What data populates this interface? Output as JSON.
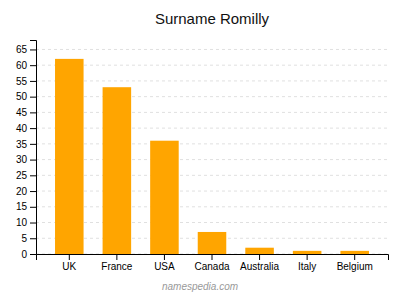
{
  "chart_data": {
    "type": "bar",
    "title": "Surname Romilly",
    "categories": [
      "UK",
      "France",
      "USA",
      "Canada",
      "Australia",
      "Italy",
      "Belgium"
    ],
    "values": [
      62,
      53,
      36,
      7,
      2,
      1,
      1
    ],
    "color": "#FFA500",
    "ylim": [
      0,
      68
    ],
    "yticks": [
      0,
      5,
      10,
      15,
      20,
      25,
      30,
      35,
      40,
      45,
      50,
      55,
      60,
      65
    ],
    "grid": true,
    "annotations": [
      "namespedia.com"
    ]
  }
}
